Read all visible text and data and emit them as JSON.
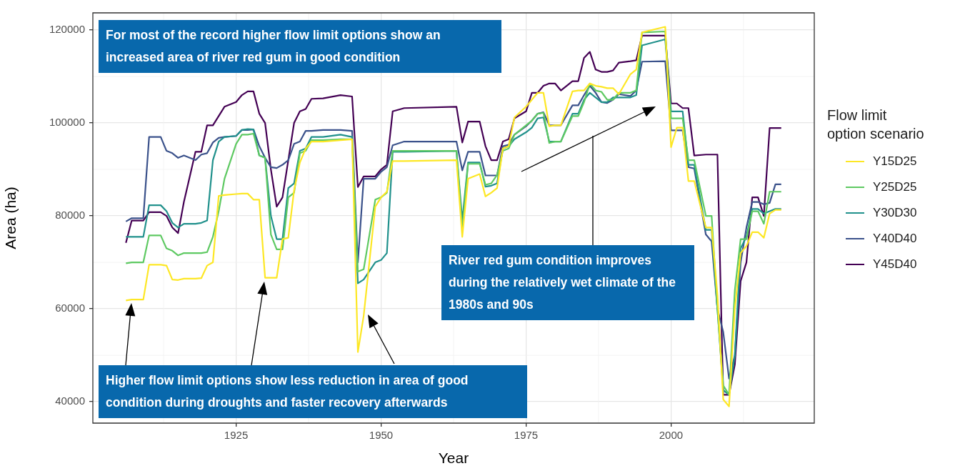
{
  "chart_data": {
    "type": "line",
    "xlabel": "Year",
    "ylabel": "Area (ha)",
    "legend_title": "Flow limit\noption scenario",
    "legend": "right",
    "grid": true,
    "marker": "none",
    "xlim": [
      1900.3,
      2024.7
    ],
    "xticks": [
      1925,
      1950,
      1975,
      2000
    ],
    "ylim": [
      35400,
      123700
    ],
    "yticks": [
      40000,
      60000,
      80000,
      100000,
      120000
    ],
    "x": [
      1906,
      1907,
      1909,
      1910,
      1912,
      1913,
      1914,
      1915,
      1916,
      1918,
      1919,
      1920,
      1921,
      1922,
      1923,
      1925,
      1926,
      1927,
      1928,
      1929,
      1930,
      1931,
      1932,
      1933,
      1934,
      1935,
      1936,
      1937,
      1938,
      1940,
      1943,
      1945,
      1946,
      1947,
      1949,
      1950,
      1951,
      1952,
      1954,
      1963,
      1964,
      1965,
      1967,
      1968,
      1969,
      1970,
      1971,
      1972,
      1973,
      1975,
      1976,
      1977,
      1978,
      1979,
      1980,
      1981,
      1983,
      1984,
      1985,
      1986,
      1987,
      1988,
      1989,
      1990,
      1991,
      1993,
      1994,
      1995,
      1999,
      2000,
      2001,
      2002,
      2003,
      2004,
      2006,
      2007,
      2008,
      2009,
      2010,
      2011,
      2012,
      2013,
      2014,
      2015,
      2016,
      2017,
      2018,
      2019
    ],
    "series": [
      {
        "name": "Y15D25",
        "color": "#fde725",
        "values": [
          61800,
          62000,
          62000,
          69500,
          69500,
          69300,
          66300,
          66200,
          66500,
          66500,
          66600,
          69300,
          70000,
          84300,
          84500,
          84700,
          84800,
          84800,
          83500,
          83500,
          66700,
          66700,
          66700,
          75000,
          75300,
          85500,
          91500,
          94500,
          96000,
          96000,
          96300,
          96500,
          50700,
          58500,
          82000,
          84000,
          85200,
          91800,
          91800,
          92000,
          75500,
          88000,
          89000,
          84200,
          85000,
          86000,
          94500,
          95000,
          101200,
          103500,
          105000,
          106500,
          106500,
          99300,
          99500,
          99500,
          106800,
          107000,
          107000,
          108500,
          108000,
          107800,
          107500,
          107500,
          106200,
          110500,
          111500,
          119500,
          120700,
          94800,
          99000,
          99000,
          87500,
          87500,
          77500,
          77500,
          63000,
          40500,
          39000,
          60000,
          72000,
          73500,
          76500,
          76500,
          75300,
          80500,
          81300,
          81300
        ]
      },
      {
        "name": "Y25D25",
        "color": "#5ec962",
        "values": [
          69800,
          70000,
          70000,
          75800,
          75800,
          73000,
          72500,
          71500,
          72000,
          72000,
          72000,
          72200,
          75500,
          81000,
          88000,
          95500,
          97500,
          97500,
          97700,
          93000,
          92500,
          76000,
          72800,
          72800,
          84000,
          85000,
          93500,
          94000,
          96300,
          96300,
          96500,
          96500,
          68000,
          68500,
          83500,
          84000,
          85000,
          94000,
          94000,
          94000,
          77000,
          91200,
          91200,
          86700,
          87000,
          88800,
          94000,
          94500,
          97500,
          99500,
          100500,
          102000,
          102200,
          95700,
          96000,
          96000,
          101500,
          101500,
          104500,
          108500,
          107000,
          106700,
          105000,
          105000,
          106500,
          106500,
          107000,
          119500,
          119700,
          101000,
          101000,
          101000,
          92000,
          92000,
          80000,
          80000,
          60000,
          43500,
          41500,
          64000,
          75000,
          75000,
          81000,
          81000,
          78300,
          85200,
          85200,
          85200
        ]
      },
      {
        "name": "Y30D30",
        "color": "#21918c",
        "values": [
          75500,
          75500,
          75500,
          82300,
          82300,
          81000,
          78500,
          77500,
          78300,
          78300,
          78500,
          79000,
          92000,
          96000,
          97000,
          97200,
          98500,
          98700,
          98600,
          93000,
          92500,
          80000,
          75000,
          75000,
          86000,
          87000,
          94000,
          94500,
          97000,
          97000,
          97500,
          97000,
          65500,
          66300,
          70000,
          70500,
          72000,
          93800,
          93800,
          94000,
          79000,
          91500,
          91500,
          86300,
          86500,
          87000,
          94500,
          95000,
          96500,
          98000,
          99000,
          101000,
          101200,
          96000,
          96000,
          96000,
          102000,
          102000,
          105000,
          106500,
          105500,
          104500,
          104500,
          105500,
          105500,
          105500,
          106000,
          116700,
          118000,
          102500,
          102500,
          102500,
          91000,
          91000,
          77000,
          77000,
          60000,
          42500,
          41500,
          50000,
          73000,
          75500,
          81500,
          81500,
          80500,
          81000,
          81500,
          81500
        ]
      },
      {
        "name": "Y40D40",
        "color": "#3b528b",
        "values": [
          78800,
          79500,
          79500,
          97000,
          97000,
          94000,
          93500,
          92500,
          93000,
          92000,
          93200,
          93500,
          95800,
          96800,
          97000,
          97200,
          98500,
          98500,
          98600,
          95000,
          92500,
          90500,
          90300,
          91000,
          92000,
          95500,
          96000,
          98300,
          98300,
          98500,
          98500,
          98300,
          70000,
          88000,
          88000,
          89500,
          90500,
          95200,
          96000,
          96000,
          89800,
          93800,
          93800,
          88700,
          88700,
          88700,
          95000,
          95300,
          97500,
          99300,
          100500,
          102000,
          102300,
          99500,
          99500,
          99500,
          103800,
          103800,
          106000,
          108000,
          106500,
          104500,
          104300,
          105000,
          106200,
          105800,
          107000,
          113200,
          113300,
          98400,
          98400,
          98400,
          90500,
          90200,
          76000,
          74500,
          60000,
          55000,
          45000,
          50000,
          70000,
          77500,
          83000,
          83000,
          82500,
          82800,
          86800,
          86800
        ]
      },
      {
        "name": "Y45D40",
        "color": "#440154",
        "values": [
          74200,
          79000,
          79000,
          80800,
          80800,
          80000,
          77500,
          76300,
          83000,
          93800,
          93800,
          99500,
          99500,
          101500,
          103500,
          104500,
          106000,
          106800,
          106800,
          102000,
          100000,
          90000,
          82000,
          84000,
          92000,
          100000,
          102500,
          103000,
          105200,
          105300,
          106000,
          105700,
          86200,
          88500,
          88500,
          90000,
          91000,
          102500,
          103200,
          103500,
          95800,
          100300,
          100300,
          95000,
          92000,
          92000,
          96000,
          96500,
          101000,
          102500,
          106500,
          106500,
          108000,
          108500,
          108500,
          107000,
          109000,
          109000,
          114000,
          115300,
          111500,
          111000,
          111000,
          111300,
          113000,
          113300,
          113500,
          118800,
          118800,
          104200,
          104200,
          103200,
          103200,
          93000,
          93200,
          93200,
          93200,
          41500,
          41500,
          48000,
          66000,
          70000,
          84000,
          84000,
          80000,
          98900,
          98900,
          98900
        ]
      }
    ],
    "annotations": [
      "For most of the record higher flow limit options show an increased area of river red gum in good condition",
      "River red gum condition improves during the relatively wet climate of the 1980s and 90s",
      "Higher flow limit options show less reduction in area of good condition during droughts and faster recovery afterwards"
    ]
  }
}
